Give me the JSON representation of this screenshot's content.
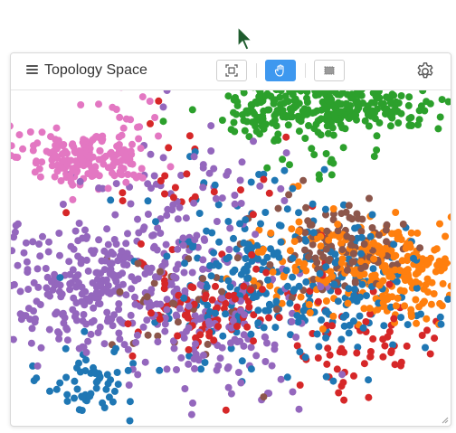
{
  "panel": {
    "title": "Topology Space"
  },
  "toolbar": {
    "buttons": [
      {
        "name": "fit-view-icon",
        "active": false
      },
      {
        "name": "pan-hand-icon",
        "active": true
      },
      {
        "name": "box-select-icon",
        "active": false
      }
    ]
  },
  "colors": {
    "accent": "#3e98ef",
    "clusters": [
      "#1f77b4",
      "#ff7f0e",
      "#2ca02c",
      "#d62728",
      "#9467bd",
      "#8c564b",
      "#e377c2"
    ]
  },
  "chart_data": {
    "type": "scatter",
    "xlabel": "",
    "ylabel": "",
    "grid": false,
    "legend": "none",
    "series": [
      {
        "color": "#2ca02c",
        "clusters": [
          {
            "cx": 360,
            "cy": 18,
            "sx": 55,
            "sy": 14,
            "n": 260
          },
          {
            "cx": 275,
            "cy": 28,
            "sx": 18,
            "sy": 12,
            "n": 45
          },
          {
            "cx": 330,
            "cy": 70,
            "sx": 40,
            "sy": 12,
            "n": 20
          }
        ]
      },
      {
        "color": "#e377c2",
        "clusters": [
          {
            "cx": 85,
            "cy": 75,
            "sx": 38,
            "sy": 14,
            "n": 180
          },
          {
            "cx": 120,
            "cy": 40,
            "sx": 30,
            "sy": 18,
            "n": 25
          }
        ]
      },
      {
        "color": "#9467bd",
        "clusters": [
          {
            "cx": 90,
            "cy": 215,
            "sx": 70,
            "sy": 40,
            "n": 340
          },
          {
            "cx": 235,
            "cy": 260,
            "sx": 50,
            "sy": 45,
            "n": 120
          },
          {
            "cx": 200,
            "cy": 110,
            "sx": 60,
            "sy": 35,
            "n": 60
          }
        ]
      },
      {
        "color": "#1f77b4",
        "clusters": [
          {
            "cx": 280,
            "cy": 200,
            "sx": 60,
            "sy": 45,
            "n": 220
          },
          {
            "cx": 90,
            "cy": 320,
            "sx": 25,
            "sy": 25,
            "n": 60
          },
          {
            "cx": 380,
            "cy": 230,
            "sx": 50,
            "sy": 35,
            "n": 80
          }
        ]
      },
      {
        "color": "#ff7f0e",
        "clusters": [
          {
            "cx": 420,
            "cy": 200,
            "sx": 40,
            "sy": 28,
            "n": 230
          },
          {
            "cx": 330,
            "cy": 190,
            "sx": 35,
            "sy": 35,
            "n": 60
          }
        ]
      },
      {
        "color": "#d62728",
        "clusters": [
          {
            "cx": 220,
            "cy": 245,
            "sx": 45,
            "sy": 25,
            "n": 90
          },
          {
            "cx": 390,
            "cy": 280,
            "sx": 45,
            "sy": 35,
            "n": 70
          },
          {
            "cx": 200,
            "cy": 120,
            "sx": 60,
            "sy": 40,
            "n": 30
          }
        ]
      },
      {
        "color": "#8c564b",
        "clusters": [
          {
            "cx": 360,
            "cy": 175,
            "sx": 35,
            "sy": 25,
            "n": 110
          },
          {
            "cx": 200,
            "cy": 230,
            "sx": 50,
            "sy": 40,
            "n": 40
          }
        ]
      }
    ]
  }
}
